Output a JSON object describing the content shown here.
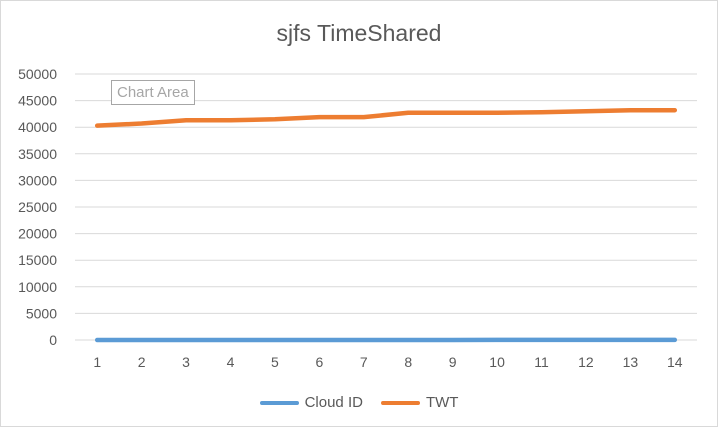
{
  "chart_data": {
    "type": "line",
    "title": "sjfs TimeShared",
    "xlabel": "",
    "ylabel": "",
    "categories": [
      "1",
      "2",
      "3",
      "4",
      "5",
      "6",
      "7",
      "8",
      "9",
      "10",
      "11",
      "12",
      "13",
      "14"
    ],
    "ylim": [
      0,
      50000
    ],
    "yticks": [
      "0",
      "5000",
      "10000",
      "15000",
      "20000",
      "25000",
      "30000",
      "35000",
      "40000",
      "45000",
      "50000"
    ],
    "grid": true,
    "legend_position": "bottom",
    "series": [
      {
        "name": "Cloud ID",
        "color": "#5b9bd5",
        "values": [
          1,
          2,
          3,
          4,
          5,
          6,
          7,
          8,
          9,
          10,
          11,
          12,
          13,
          14
        ]
      },
      {
        "name": "TWT",
        "color": "#ed7d31",
        "values": [
          40300,
          40700,
          41300,
          41300,
          41500,
          41900,
          41900,
          42700,
          42700,
          42700,
          42800,
          43000,
          43200,
          43200
        ]
      }
    ]
  },
  "tooltip": {
    "text": "Chart Area"
  }
}
